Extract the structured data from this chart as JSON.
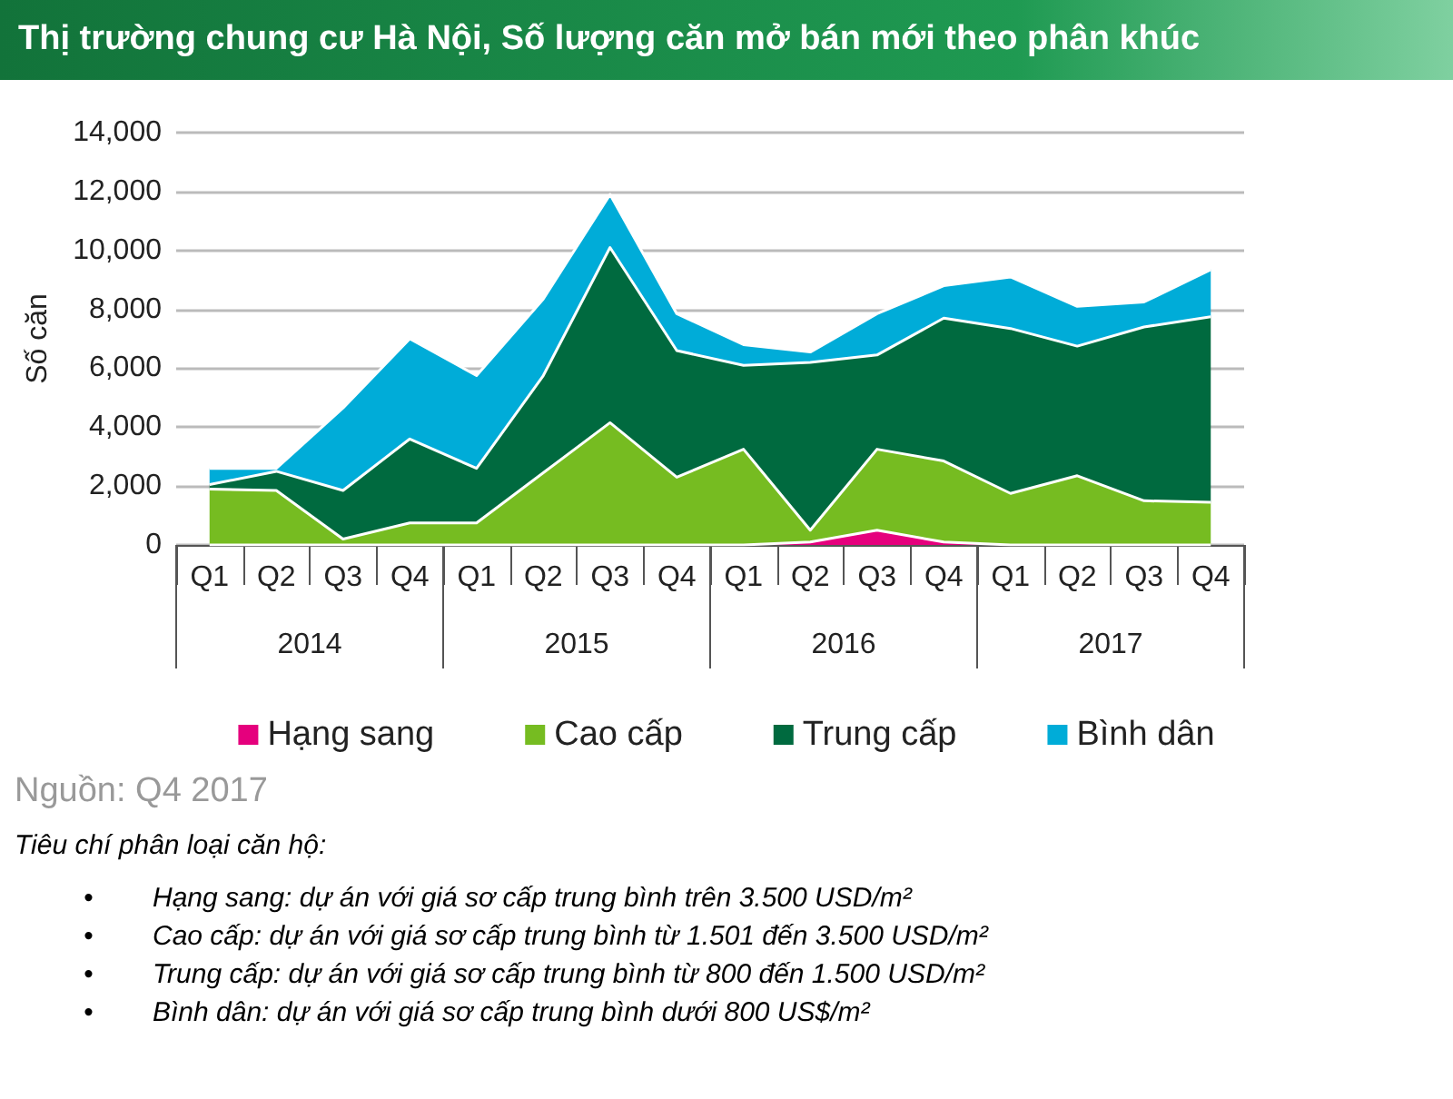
{
  "chart_data": {
    "type": "area",
    "stacked": true,
    "title": "Thị trường chung cư Hà Nội, Số lượng căn mở bán mới theo phân khúc",
    "ylabel": "Số căn",
    "categories": [
      "Q1",
      "Q2",
      "Q3",
      "Q4",
      "Q1",
      "Q2",
      "Q3",
      "Q4",
      "Q1",
      "Q2",
      "Q3",
      "Q4",
      "Q1",
      "Q2",
      "Q3",
      "Q4"
    ],
    "series": [
      {
        "name": "Hạng sang",
        "color": "#e5007d",
        "values": [
          0,
          0,
          0,
          0,
          0,
          0,
          0,
          0,
          0,
          100,
          500,
          100,
          0,
          0,
          0,
          0
        ]
      },
      {
        "name": "Cao cấp",
        "color": "#76bc21",
        "values": [
          1900,
          1850,
          200,
          750,
          750,
          2450,
          4150,
          2300,
          3250,
          400,
          2750,
          2750,
          1750,
          2350,
          1500,
          1450
        ]
      },
      {
        "name": "Trung cấp",
        "color": "#006a3f",
        "values": [
          150,
          650,
          1650,
          2850,
          1850,
          3300,
          5950,
          4300,
          2850,
          5700,
          3200,
          4850,
          5600,
          4400,
          5900,
          6300
        ]
      },
      {
        "name": "Bình dân",
        "color": "#00acd8",
        "values": [
          550,
          100,
          2800,
          3400,
          3150,
          2600,
          1800,
          1250,
          700,
          350,
          1400,
          1100,
          1750,
          1350,
          850,
          1600
        ]
      }
    ],
    "ylim": [
      0,
      14000
    ],
    "yticks": [
      0,
      {
        "value": 2000,
        "label": "2,000"
      },
      {
        "value": 4000,
        "label": "4,000"
      },
      {
        "value": 6000,
        "label": "6,000"
      },
      {
        "value": 8000,
        "label": "8,000"
      },
      {
        "value": 10000,
        "label": "10,000"
      },
      {
        "value": 12000,
        "label": "12,000"
      },
      {
        "value": 14000,
        "label": "14,000"
      }
    ],
    "grid": "y",
    "legend": "bottom",
    "marker": "none",
    "annotations": [
      "2014",
      "2015",
      "2016",
      "2017",
      "Nguồn: Q4 2017",
      "Tiêu chí phân loại căn hộ:",
      "•\tHạng sang: dự án với giá sơ cấp trung bình trên 3.500 USD/m²",
      "•\tCao cấp: dự án với giá sơ cấp trung bình từ 1.501 đến 3.500 USD/m²",
      "•\tTrung cấp: dự án với giá sơ cấp trung bình từ 800 đến 1.500 USD/m²",
      "•\tBình dân: dự án với giá sơ cấp trung bình dưới 800 US$/m²"
    ]
  }
}
